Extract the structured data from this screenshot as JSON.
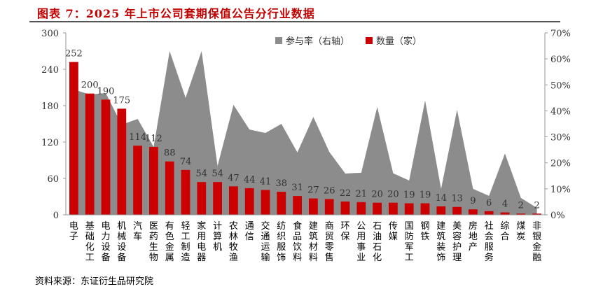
{
  "title": "图表 7：2025 年上市公司套期保值公告分行业数据",
  "source": "资料来源：东证衍生品研究院",
  "chart_data": {
    "type": "bar+area",
    "categories": [
      "电子",
      "基础化工",
      "电力设备",
      "机械设备",
      "汽车",
      "医药生物",
      "有色金属",
      "轻工制造",
      "家用电器",
      "计算机",
      "农林牧渔",
      "通信",
      "交通运输",
      "纺织服饰",
      "食品饮料",
      "建筑材料",
      "商贸零售",
      "环保",
      "公用事业",
      "石油石化",
      "传媒",
      "国防军工",
      "钢铁",
      "建筑装饰",
      "美容护理",
      "房地产",
      "社会服务",
      "综合",
      "煤炭",
      "非银金融"
    ],
    "series": [
      {
        "name": "参与率（右轴）",
        "type": "area",
        "axis": "right",
        "color": "#8c8c8c",
        "values": [
          48.2,
          46.3,
          46.8,
          34.7,
          36.9,
          26.1,
          63,
          45,
          63,
          18.8,
          42.3,
          32.8,
          31.5,
          35,
          24,
          37.7,
          24.2,
          15.9,
          16.2,
          41.5,
          16,
          13.2,
          44,
          10,
          40.4,
          10,
          7.3,
          23.6,
          6.5,
          2.7
        ]
      },
      {
        "name": "数量（家）",
        "type": "bar",
        "axis": "left",
        "color": "#cc0000",
        "values": [
          252,
          200,
          190,
          175,
          114,
          112,
          88,
          74,
          54,
          54,
          47,
          44,
          41,
          38,
          31,
          27,
          26,
          22,
          21,
          20,
          20,
          19,
          19,
          14,
          13,
          9,
          6,
          4,
          2,
          2
        ]
      }
    ],
    "left_axis": {
      "ylim": [
        0,
        300
      ],
      "ticks": [
        "0",
        "60",
        "120",
        "180",
        "240",
        "300"
      ]
    },
    "right_axis": {
      "ylim": [
        0,
        70
      ],
      "ticks": [
        "0%",
        "10%",
        "20%",
        "30%",
        "40%",
        "50%",
        "60%",
        "70%"
      ]
    },
    "legend": "top-right",
    "grid": false
  }
}
